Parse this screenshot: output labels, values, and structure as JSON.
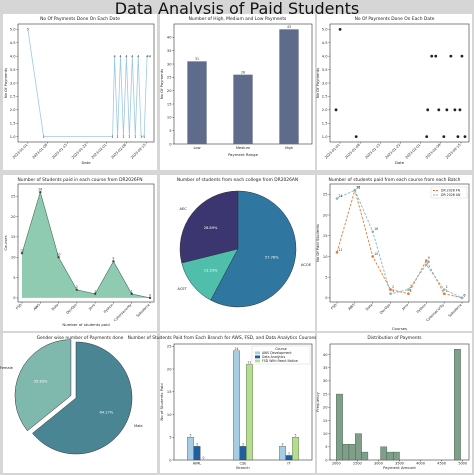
{
  "page_title": "Data Analysis of Paid Students",
  "chart_data": [
    {
      "id": "p1",
      "type": "line",
      "title": "No Of Payments Done On Each Date",
      "xlabel": "Date",
      "ylabel": "No Of Payments",
      "x_ticks": [
        "2023-01-01",
        "2023-01-08",
        "2023-01-15",
        "2023-01-22",
        "2023-02-01",
        "2023-02-08",
        "2023-02-15"
      ],
      "y_ticks": [
        "1.0",
        "1.5",
        "2.0",
        "2.5",
        "3.0",
        "3.5",
        "4.0",
        "4.5",
        "5.0"
      ],
      "xlim": [
        -0.5,
        6.4
      ],
      "ylim": [
        0.8,
        5.2
      ],
      "points": [
        {
          "x": 0,
          "y": 5
        },
        {
          "x": 0.8,
          "y": 1
        },
        {
          "x": 4.3,
          "y": 1
        },
        {
          "x": 4.4,
          "y": 4
        },
        {
          "x": 4.55,
          "y": 1
        },
        {
          "x": 4.7,
          "y": 4
        },
        {
          "x": 4.85,
          "y": 1
        },
        {
          "x": 5.0,
          "y": 4
        },
        {
          "x": 5.15,
          "y": 1
        },
        {
          "x": 5.3,
          "y": 4
        },
        {
          "x": 5.45,
          "y": 1
        },
        {
          "x": 5.6,
          "y": 4
        },
        {
          "x": 5.75,
          "y": 1
        },
        {
          "x": 5.9,
          "y": 1
        },
        {
          "x": 6.05,
          "y": 4
        },
        {
          "x": 6.2,
          "y": 4
        }
      ],
      "color": "#9ecae1"
    },
    {
      "id": "p2",
      "type": "bar",
      "title": "Number of High, Medium and Low Payments",
      "xlabel": "Payment Range",
      "ylabel": "No Of Payments",
      "categories": [
        "Low",
        "Medium",
        "High"
      ],
      "values": [
        31,
        26,
        43
      ],
      "y_ticks": [
        0,
        5,
        10,
        15,
        20,
        25,
        30,
        35,
        40
      ],
      "ylim": [
        0,
        45
      ],
      "color": "#5f6b8b"
    },
    {
      "id": "p3",
      "type": "scatter",
      "title": "No Of Payments Done On Each Date",
      "xlabel": "Date",
      "ylabel": "No Of Payments",
      "x_ticks": [
        "2023-01-01",
        "2023-01-08",
        "2023-01-15",
        "2023-01-22",
        "2023-02-01",
        "2023-02-08",
        "2023-02-15"
      ],
      "y_ticks": [
        "1.0",
        "1.5",
        "2.0",
        "2.5",
        "3.0",
        "3.5",
        "4.0",
        "4.5",
        "5.0"
      ],
      "xlim": [
        -0.5,
        6.4
      ],
      "ylim": [
        0.8,
        5.2
      ],
      "points": [
        {
          "x": -0.2,
          "y": 2
        },
        {
          "x": 0,
          "y": 5
        },
        {
          "x": 0.8,
          "y": 1
        },
        {
          "x": 4.3,
          "y": 1
        },
        {
          "x": 4.35,
          "y": 2
        },
        {
          "x": 4.55,
          "y": 4
        },
        {
          "x": 4.75,
          "y": 4
        },
        {
          "x": 4.9,
          "y": 2
        },
        {
          "x": 5.15,
          "y": 1
        },
        {
          "x": 5.3,
          "y": 2
        },
        {
          "x": 5.5,
          "y": 4
        },
        {
          "x": 5.7,
          "y": 2
        },
        {
          "x": 5.85,
          "y": 1
        },
        {
          "x": 5.95,
          "y": 2
        },
        {
          "x": 6.05,
          "y": 4
        },
        {
          "x": 6.2,
          "y": 1
        }
      ],
      "color": "#222222"
    },
    {
      "id": "p4",
      "type": "area",
      "title": "Number of Students paid in each course from DR2026FN",
      "xlabel": "Number of students paid",
      "ylabel": "Courses",
      "categories": [
        "FSD",
        "AWS",
        "Data",
        "DevOps",
        "Java",
        "Python",
        "Cybersecurity",
        "Salesforce"
      ],
      "values": [
        11,
        26,
        10,
        2,
        1,
        9,
        1,
        0
      ],
      "value_labels": [
        "11",
        "26",
        "10",
        "2",
        "1",
        "9",
        "1",
        "0"
      ],
      "y_ticks": [
        0,
        5,
        10,
        15,
        20,
        25
      ],
      "ylim": [
        -1,
        28
      ],
      "color": "#8fcbb0"
    },
    {
      "id": "p5",
      "type": "pie",
      "title": "Number of students from each college from DR2026AN",
      "slices": [
        {
          "label": "AEC",
          "value": 28.89,
          "pct": "28.89%",
          "color": "#3b3570"
        },
        {
          "label": "ACET",
          "value": 13.33,
          "pct": "13.33%",
          "color": "#4fbfac"
        },
        {
          "label": "ACOE",
          "value": 57.78,
          "pct": "57.78%",
          "color": "#2f76a0"
        }
      ]
    },
    {
      "id": "p6",
      "type": "line",
      "title": "Number of students paid from each course from each Batch",
      "xlabel": "Courses",
      "ylabel": "No Of Paid Students",
      "categories": [
        "FSD",
        "AWS",
        "Data",
        "DevOps",
        "Java",
        "Python",
        "Cybersecurity",
        "Salesforce"
      ],
      "y_ticks": [
        0,
        5,
        10,
        15,
        20,
        25
      ],
      "ylim": [
        -1,
        27.5
      ],
      "series": [
        {
          "name": "DR 2026 FN",
          "values": [
            11,
            26,
            10,
            2,
            1,
            9,
            1,
            0
          ],
          "labels": [
            "11",
            "26",
            "10",
            "2",
            "1",
            "9",
            "1",
            "0"
          ],
          "color": "#e07b39"
        },
        {
          "name": "DR 2026 AN",
          "values": [
            24,
            26,
            16,
            1,
            2,
            8,
            2,
            0
          ],
          "labels": [
            "24",
            "26",
            "16",
            "1",
            "2",
            "8",
            "2",
            "0"
          ],
          "color": "#7fb7c9"
        }
      ]
    },
    {
      "id": "p7",
      "type": "pie",
      "title": "Gender wise number of Payments done",
      "slices": [
        {
          "label": "Female",
          "value": 35.83,
          "pct": "35.83%",
          "color": "#7fb8ad",
          "explode": true
        },
        {
          "label": "Male",
          "value": 64.17,
          "pct": "64.17%",
          "color": "#4a8594"
        }
      ]
    },
    {
      "id": "p8",
      "type": "bar",
      "title": "Number of Students Paid from Each Branch for AWS, FSD, and Data Analytics Courses (DR 2026 FN)",
      "xlabel": "Branch",
      "ylabel": "No of Students Paid",
      "categories": [
        "AIML",
        "CSE",
        "IT"
      ],
      "legend_title": "Course",
      "legend": "top-right",
      "y_ticks": [
        0,
        5,
        10,
        15,
        20,
        25
      ],
      "ylim": [
        0,
        25.5
      ],
      "series": [
        {
          "name": "AWS Development",
          "values": [
            5,
            24,
            3
          ],
          "labels": [
            "5",
            "24",
            "3"
          ],
          "color": "#a6cde2"
        },
        {
          "name": "Data Analytics",
          "values": [
            3,
            3,
            1
          ],
          "labels": [
            "3",
            "3",
            "1"
          ],
          "color": "#1f5f9e"
        },
        {
          "name": "FSD With React Native",
          "values": [
            0,
            21,
            5
          ],
          "labels": [
            "0",
            "21",
            "5"
          ],
          "color": "#b3de8b"
        }
      ]
    },
    {
      "id": "p9",
      "type": "bar",
      "title": "Distribution of Payments",
      "xlabel": "Payment Amount",
      "ylabel": "Frequency",
      "x_ticks": [
        2000,
        2500,
        3000,
        3500,
        4000,
        4500,
        5000
      ],
      "xlim": [
        1850,
        5150
      ],
      "y_ticks": [
        0,
        5,
        10,
        15,
        20,
        25,
        30,
        35,
        40
      ],
      "ylim": [
        0,
        44
      ],
      "bins": [
        {
          "x0": 2000,
          "x1": 2150,
          "value": 25
        },
        {
          "x0": 2150,
          "x1": 2300,
          "value": 6
        },
        {
          "x0": 2300,
          "x1": 2450,
          "value": 6
        },
        {
          "x0": 2450,
          "x1": 2600,
          "value": 10
        },
        {
          "x0": 2600,
          "x1": 2750,
          "value": 3
        },
        {
          "x0": 2750,
          "x1": 2900,
          "value": 0
        },
        {
          "x0": 2900,
          "x1": 3050,
          "value": 0
        },
        {
          "x0": 3050,
          "x1": 3200,
          "value": 5
        },
        {
          "x0": 3200,
          "x1": 3350,
          "value": 3
        },
        {
          "x0": 3350,
          "x1": 3500,
          "value": 3
        },
        {
          "x0": 3500,
          "x1": 3650,
          "value": 0
        },
        {
          "x0": 3650,
          "x1": 3800,
          "value": 0
        },
        {
          "x0": 4800,
          "x1": 4950,
          "value": 42
        }
      ],
      "color": "#7f9f8a"
    }
  ]
}
